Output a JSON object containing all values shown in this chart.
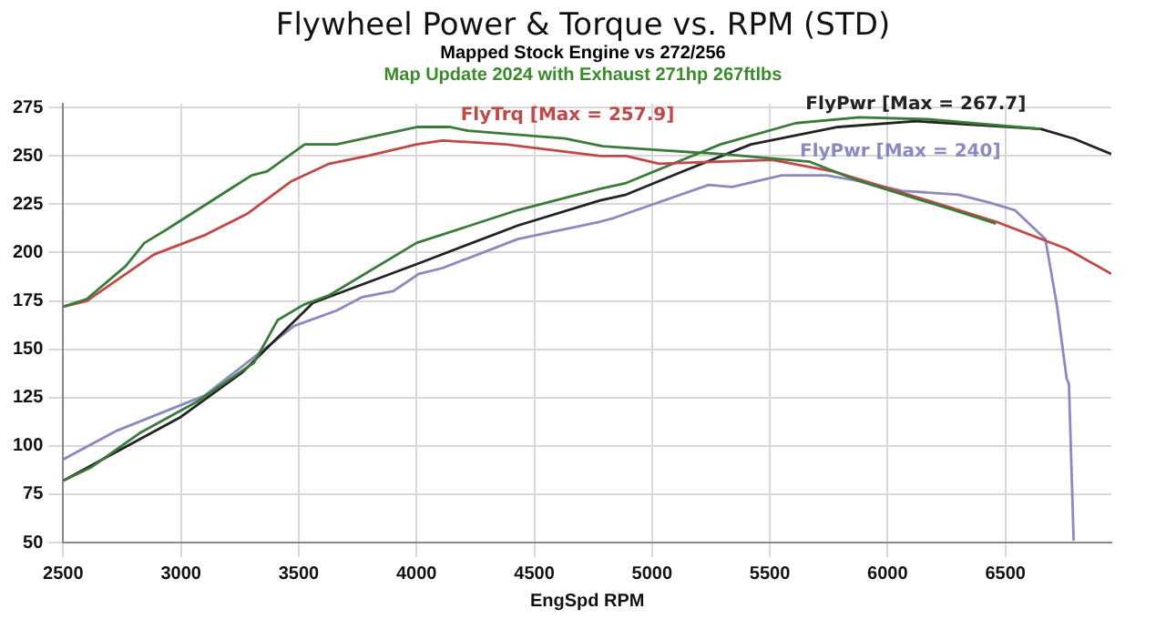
{
  "chart_data": {
    "type": "line",
    "title": "Flywheel Power & Torque vs. RPM (STD)",
    "subtitle": "Mapped Stock Engine vs 272/256",
    "annotations": [
      "Map Update 2024 with Exhaust 271hp 267ftlbs"
    ],
    "xlabel": "EngSpd RPM",
    "xlim": [
      2500,
      6950
    ],
    "xticks": [
      2500,
      3000,
      3500,
      4000,
      4500,
      5000,
      5500,
      6000,
      6500
    ],
    "ylim": [
      50,
      277
    ],
    "yticks": [
      50,
      75,
      100,
      125,
      150,
      175,
      200,
      225,
      250,
      275
    ],
    "grid": true,
    "legend": false,
    "marker": "none",
    "line_style": "solid",
    "series": [
      {
        "color": "#3a7a3a",
        "x": [
          2500,
          2600,
          2765,
          2845,
          2940,
          3300,
          3365,
          3525,
          3660,
          4005,
          4140,
          4220,
          4630,
          4790,
          5030,
          5290,
          5670,
          5880,
          6280,
          6460
        ],
        "values": [
          172,
          176,
          193,
          205,
          212,
          240,
          242,
          256,
          256,
          265,
          265,
          263,
          259,
          255,
          253,
          251,
          247,
          237,
          222,
          215
        ]
      },
      {
        "name": "FlyTrq [Max = 257.9]",
        "color": "#c04848",
        "x": [
          2500,
          2600,
          2885,
          3100,
          3280,
          3470,
          3630,
          3790,
          4000,
          4110,
          4380,
          4780,
          4890,
          5030,
          5510,
          5770,
          6010,
          6460,
          6760,
          6950
        ],
        "values": [
          172,
          175,
          199,
          209,
          220,
          237,
          246,
          250,
          256,
          258,
          256,
          250,
          250,
          246,
          248,
          242,
          233,
          216,
          202,
          189
        ]
      },
      {
        "color": "#3a7a3a",
        "x": [
          2500,
          2620,
          2830,
          3070,
          3310,
          3410,
          3520,
          3630,
          4000,
          4430,
          4780,
          4890,
          5290,
          5610,
          5880,
          6170,
          6650
        ],
        "values": [
          82,
          89,
          107,
          123,
          143,
          165,
          173,
          178,
          205,
          222,
          233,
          236,
          256,
          267,
          270,
          269,
          264
        ]
      },
      {
        "name": "FlyPwr [Max = 267.7]",
        "color": "#222222",
        "x": [
          2500,
          3000,
          3180,
          3260,
          3560,
          4000,
          4430,
          4780,
          4890,
          5150,
          5420,
          5790,
          6120,
          6650,
          6790,
          6950
        ],
        "values": [
          82,
          115,
          131,
          138,
          174,
          194,
          214,
          227,
          230,
          243,
          256,
          265,
          268,
          264,
          259,
          251
        ]
      },
      {
        "name": "FlyPwr [Max = 240]",
        "color": "#8a8ac0",
        "x": [
          2500,
          2730,
          3100,
          3480,
          3660,
          3770,
          3900,
          4010,
          4110,
          4430,
          4780,
          4840,
          5240,
          5340,
          5550,
          5740,
          5880,
          6060,
          6300,
          6430,
          6540,
          6670,
          6720,
          6760,
          6770,
          6790
        ],
        "values": [
          93,
          108,
          126,
          162,
          170,
          177,
          180,
          189,
          192,
          207,
          216,
          218,
          235,
          234,
          240,
          240,
          237,
          232,
          230,
          226,
          222,
          207,
          172,
          135,
          132,
          51
        ]
      }
    ]
  }
}
